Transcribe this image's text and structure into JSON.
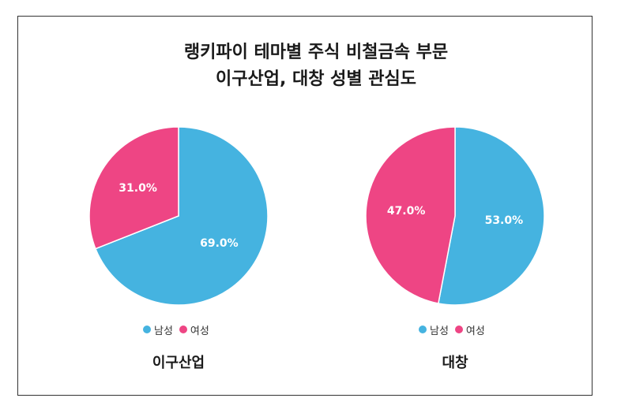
{
  "title": {
    "line1": "랭키파이 테마별 주식 비철금속 부문",
    "line2": "이구산업, 대창 성별 관심도"
  },
  "colors": {
    "male": "#45b3e0",
    "female": "#ee4584"
  },
  "legend": {
    "male_label": "남성",
    "female_label": "여성"
  },
  "chart_data": [
    {
      "type": "pie",
      "title": "이구산업",
      "categories": [
        "남성",
        "여성"
      ],
      "values": [
        69.0,
        31.0
      ],
      "labels": [
        "69.0%",
        "31.0%"
      ],
      "legend_position": "bottom"
    },
    {
      "type": "pie",
      "title": "대창",
      "categories": [
        "남성",
        "여성"
      ],
      "values": [
        53.0,
        47.0
      ],
      "labels": [
        "53.0%",
        "47.0%"
      ],
      "legend_position": "bottom"
    }
  ]
}
